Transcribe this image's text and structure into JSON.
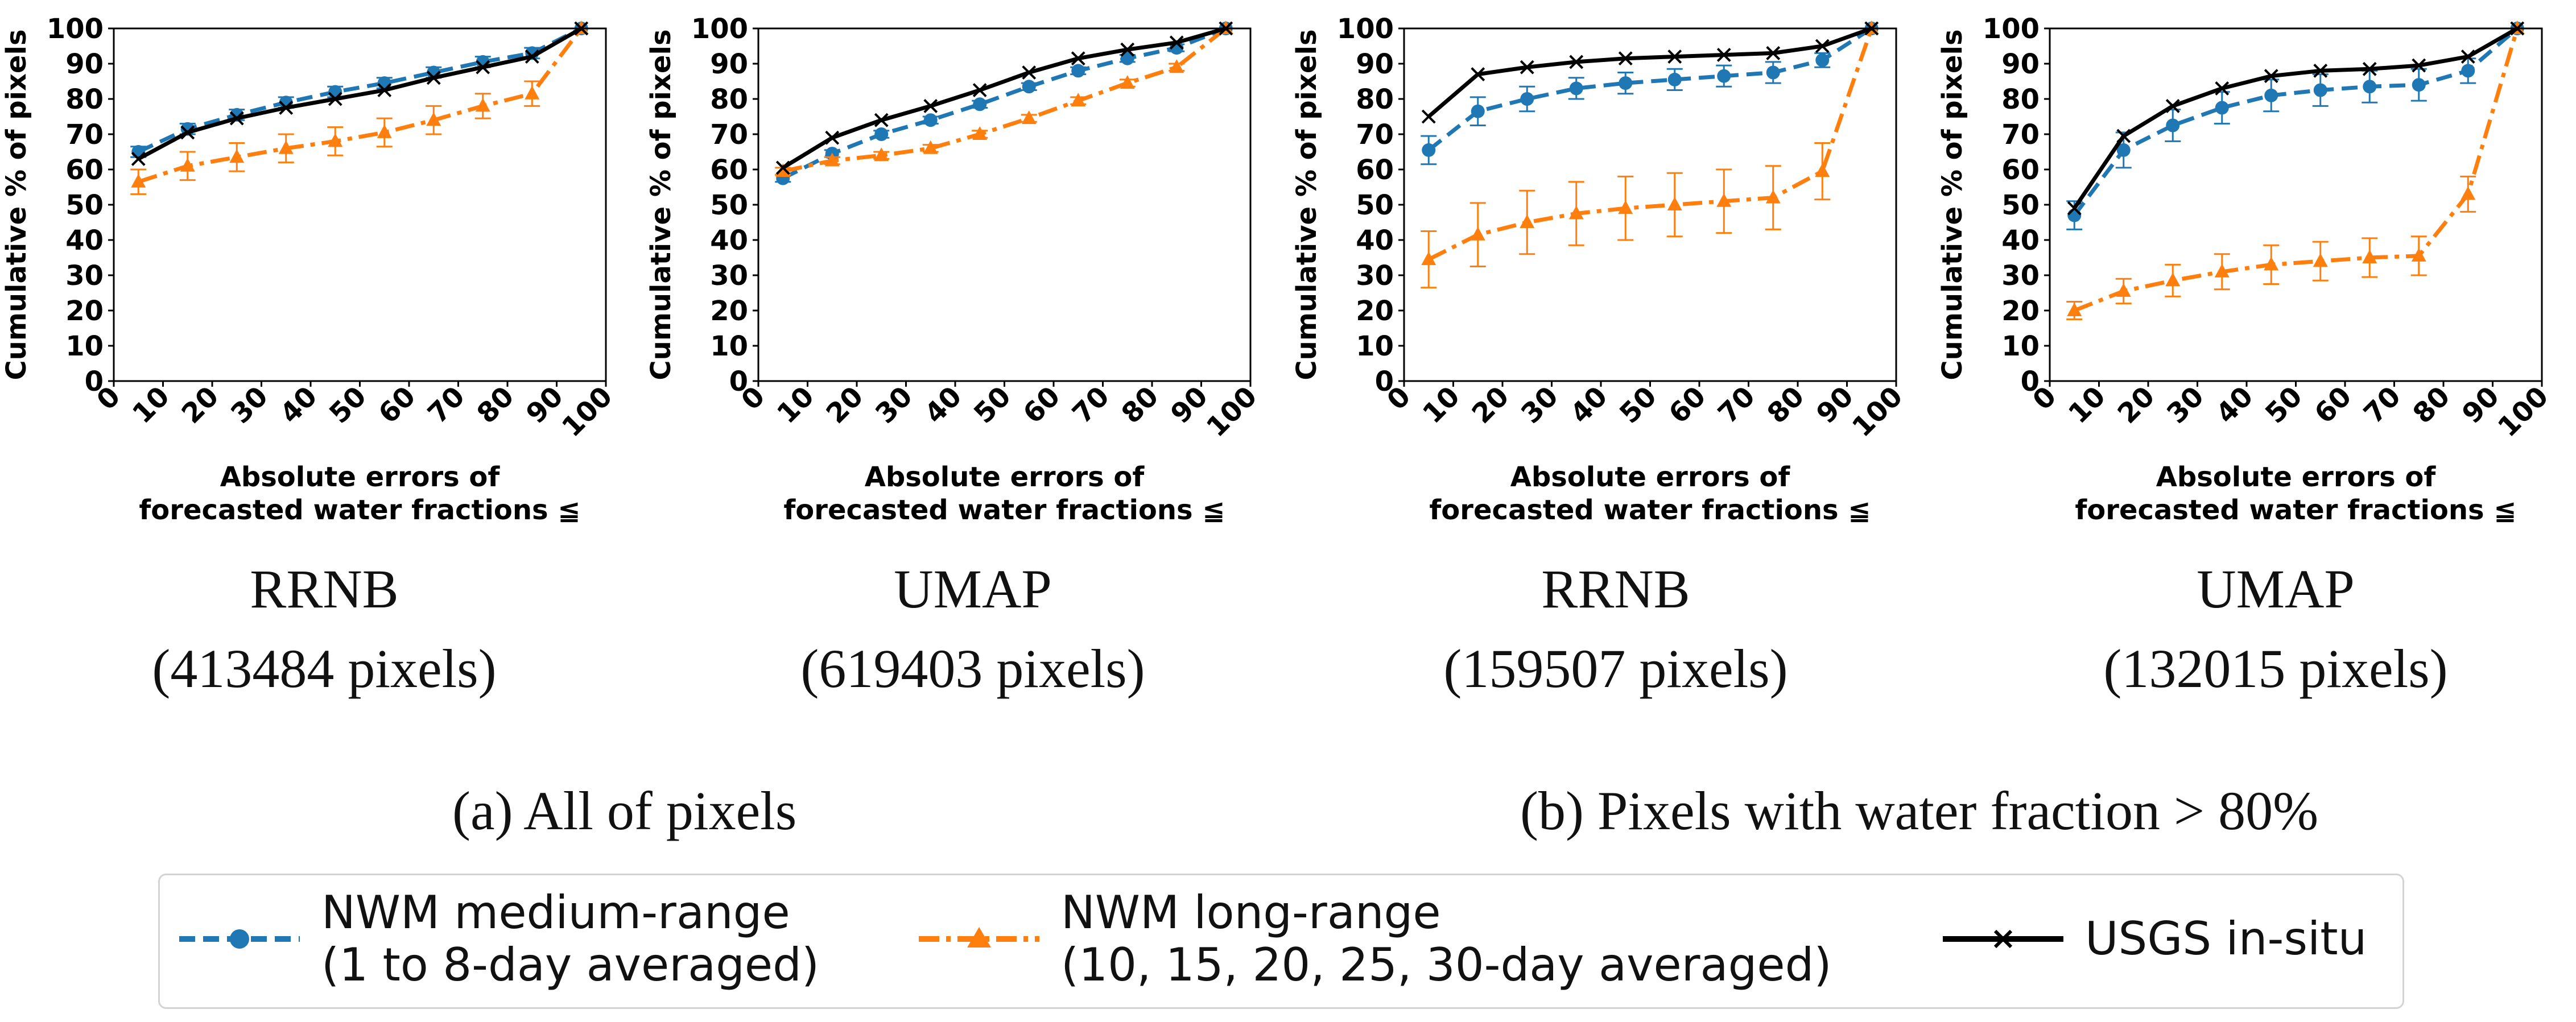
{
  "colors": {
    "medium": "#1f77b4",
    "medium_dark": "#176b97",
    "long": "#ff7f0e",
    "insitu": "#000000"
  },
  "chart_data": [
    {
      "type": "line",
      "title": "RRNB",
      "subtitle": "(413484 pixels)",
      "xlabel": "Absolute errors of forecasted water fractions ≦",
      "xlabel_lines": [
        "Absolute errors of",
        "forecasted water fractions ≦"
      ],
      "ylabel": "Cumulative % of pixels",
      "xlim": [
        0,
        100
      ],
      "ylim": [
        0,
        100
      ],
      "xticks": [
        0,
        10,
        20,
        30,
        40,
        50,
        60,
        70,
        80,
        90,
        100
      ],
      "yticks": [
        0,
        10,
        20,
        30,
        40,
        50,
        60,
        70,
        80,
        90,
        100
      ],
      "x": [
        5,
        15,
        25,
        35,
        45,
        55,
        65,
        75,
        85,
        95
      ],
      "series": [
        {
          "name": "NWM medium-range (1 to 8-day averaged)",
          "key": "medium",
          "values": [
            65,
            71.5,
            75.5,
            79,
            82,
            84.5,
            87.5,
            90.5,
            93,
            100
          ],
          "err": [
            1.5,
            1.5,
            1.5,
            1.5,
            1.5,
            1.5,
            1.5,
            1.5,
            1.5,
            0
          ]
        },
        {
          "name": "NWM long-range (10, 15, 20, 25, 30-day averaged)",
          "key": "long",
          "values": [
            56.5,
            61,
            63.5,
            66,
            68,
            70.5,
            74,
            78,
            81.5,
            100
          ],
          "err": [
            3.5,
            4,
            4,
            4,
            4,
            4,
            4,
            3.5,
            3.5,
            0
          ]
        },
        {
          "name": "USGS in-situ",
          "key": "insitu",
          "values": [
            63,
            70.5,
            74.5,
            77.5,
            80,
            82.5,
            86,
            89,
            92,
            100
          ],
          "err": []
        }
      ]
    },
    {
      "type": "line",
      "title": "UMAP",
      "subtitle": "(619403 pixels)",
      "xlabel": "Absolute errors of forecasted water fractions ≦",
      "xlabel_lines": [
        "Absolute errors of",
        "forecasted water fractions ≦"
      ],
      "ylabel": "Cumulative % of pixels",
      "xlim": [
        0,
        100
      ],
      "ylim": [
        0,
        100
      ],
      "xticks": [
        0,
        10,
        20,
        30,
        40,
        50,
        60,
        70,
        80,
        90,
        100
      ],
      "yticks": [
        0,
        10,
        20,
        30,
        40,
        50,
        60,
        70,
        80,
        90,
        100
      ],
      "x": [
        5,
        15,
        25,
        35,
        45,
        55,
        65,
        75,
        85,
        95
      ],
      "series": [
        {
          "name": "NWM medium-range (1 to 8-day averaged)",
          "key": "medium",
          "values": [
            57.5,
            64.5,
            70,
            74,
            78.5,
            83.5,
            88,
            91.5,
            94.5,
            100
          ],
          "err": [
            1,
            1,
            1,
            1,
            1,
            1,
            1,
            1,
            1,
            0
          ]
        },
        {
          "name": "NWM long-range (10, 15, 20, 25, 30-day averaged)",
          "key": "long",
          "values": [
            59.5,
            62.5,
            64,
            66,
            70,
            74.5,
            79.5,
            84.5,
            89,
            100
          ],
          "err": [
            1,
            1,
            1,
            1,
            1,
            1,
            1,
            1,
            1,
            0
          ]
        },
        {
          "name": "USGS in-situ",
          "key": "insitu",
          "values": [
            60.5,
            69,
            74,
            78,
            82.5,
            87.5,
            91.5,
            94,
            96,
            100
          ],
          "err": []
        }
      ]
    },
    {
      "type": "line",
      "title": "RRNB",
      "subtitle": "(159507 pixels)",
      "xlabel": "Absolute errors of forecasted water fractions ≦",
      "xlabel_lines": [
        "Absolute errors of",
        "forecasted water fractions ≦"
      ],
      "ylabel": "Cumulative % of pixels",
      "xlim": [
        0,
        100
      ],
      "ylim": [
        0,
        100
      ],
      "xticks": [
        0,
        10,
        20,
        30,
        40,
        50,
        60,
        70,
        80,
        90,
        100
      ],
      "yticks": [
        0,
        10,
        20,
        30,
        40,
        50,
        60,
        70,
        80,
        90,
        100
      ],
      "x": [
        5,
        15,
        25,
        35,
        45,
        55,
        65,
        75,
        85,
        95
      ],
      "series": [
        {
          "name": "NWM medium-range (1 to 8-day averaged)",
          "key": "medium",
          "values": [
            65.5,
            76.5,
            80,
            83,
            84.5,
            85.5,
            86.5,
            87.5,
            91,
            100
          ],
          "err": [
            4,
            4,
            3.5,
            3,
            3,
            3,
            3,
            3,
            2,
            0
          ]
        },
        {
          "name": "NWM long-range (10, 15, 20, 25, 30-day averaged)",
          "key": "long",
          "values": [
            34.5,
            41.5,
            45,
            47.5,
            49,
            50,
            51,
            52,
            59.5,
            100
          ],
          "err": [
            8,
            9,
            9,
            9,
            9,
            9,
            9,
            9,
            8,
            0
          ]
        },
        {
          "name": "USGS in-situ",
          "key": "insitu",
          "values": [
            75,
            87,
            89,
            90.5,
            91.5,
            92,
            92.5,
            93,
            95,
            100
          ],
          "err": []
        }
      ]
    },
    {
      "type": "line",
      "title": "UMAP",
      "subtitle": "(132015 pixels)",
      "xlabel": "Absolute errors of forecasted water fractions ≦",
      "xlabel_lines": [
        "Absolute errors of",
        "forecasted water fractions ≦"
      ],
      "ylabel": "Cumulative % of pixels",
      "xlim": [
        0,
        100
      ],
      "ylim": [
        0,
        100
      ],
      "xticks": [
        0,
        10,
        20,
        30,
        40,
        50,
        60,
        70,
        80,
        90,
        100
      ],
      "yticks": [
        0,
        10,
        20,
        30,
        40,
        50,
        60,
        70,
        80,
        90,
        100
      ],
      "x": [
        5,
        15,
        25,
        35,
        45,
        55,
        65,
        75,
        85,
        95
      ],
      "series": [
        {
          "name": "NWM medium-range (1 to 8-day averaged)",
          "key": "medium",
          "values": [
            47,
            65.5,
            72.5,
            77.5,
            81,
            82.5,
            83.5,
            84,
            88,
            100
          ],
          "err": [
            4,
            5,
            4.5,
            4.5,
            4.5,
            4.5,
            4.5,
            4.5,
            3.5,
            0
          ]
        },
        {
          "name": "NWM long-range (10, 15, 20, 25, 30-day averaged)",
          "key": "long",
          "values": [
            20,
            25.5,
            28.5,
            31,
            33,
            34,
            35,
            35.5,
            53,
            100
          ],
          "err": [
            2.5,
            3.5,
            4.5,
            5,
            5.5,
            5.5,
            5.5,
            5.5,
            5,
            0
          ]
        },
        {
          "name": "USGS in-situ",
          "key": "insitu",
          "values": [
            49,
            69.5,
            78,
            83,
            86.5,
            88,
            88.5,
            89.5,
            92,
            100
          ],
          "err": []
        }
      ]
    }
  ],
  "captions": {
    "group_a": "(a) All of pixels",
    "group_b": "(b) Pixels with water fraction > 80%"
  },
  "legend": {
    "medium_line1": "NWM medium-range",
    "medium_line2": "(1 to 8-day averaged)",
    "long_line1": "NWM long-range",
    "long_line2": "(10, 15, 20, 25, 30-day averaged)",
    "insitu_label": "USGS in-situ"
  }
}
